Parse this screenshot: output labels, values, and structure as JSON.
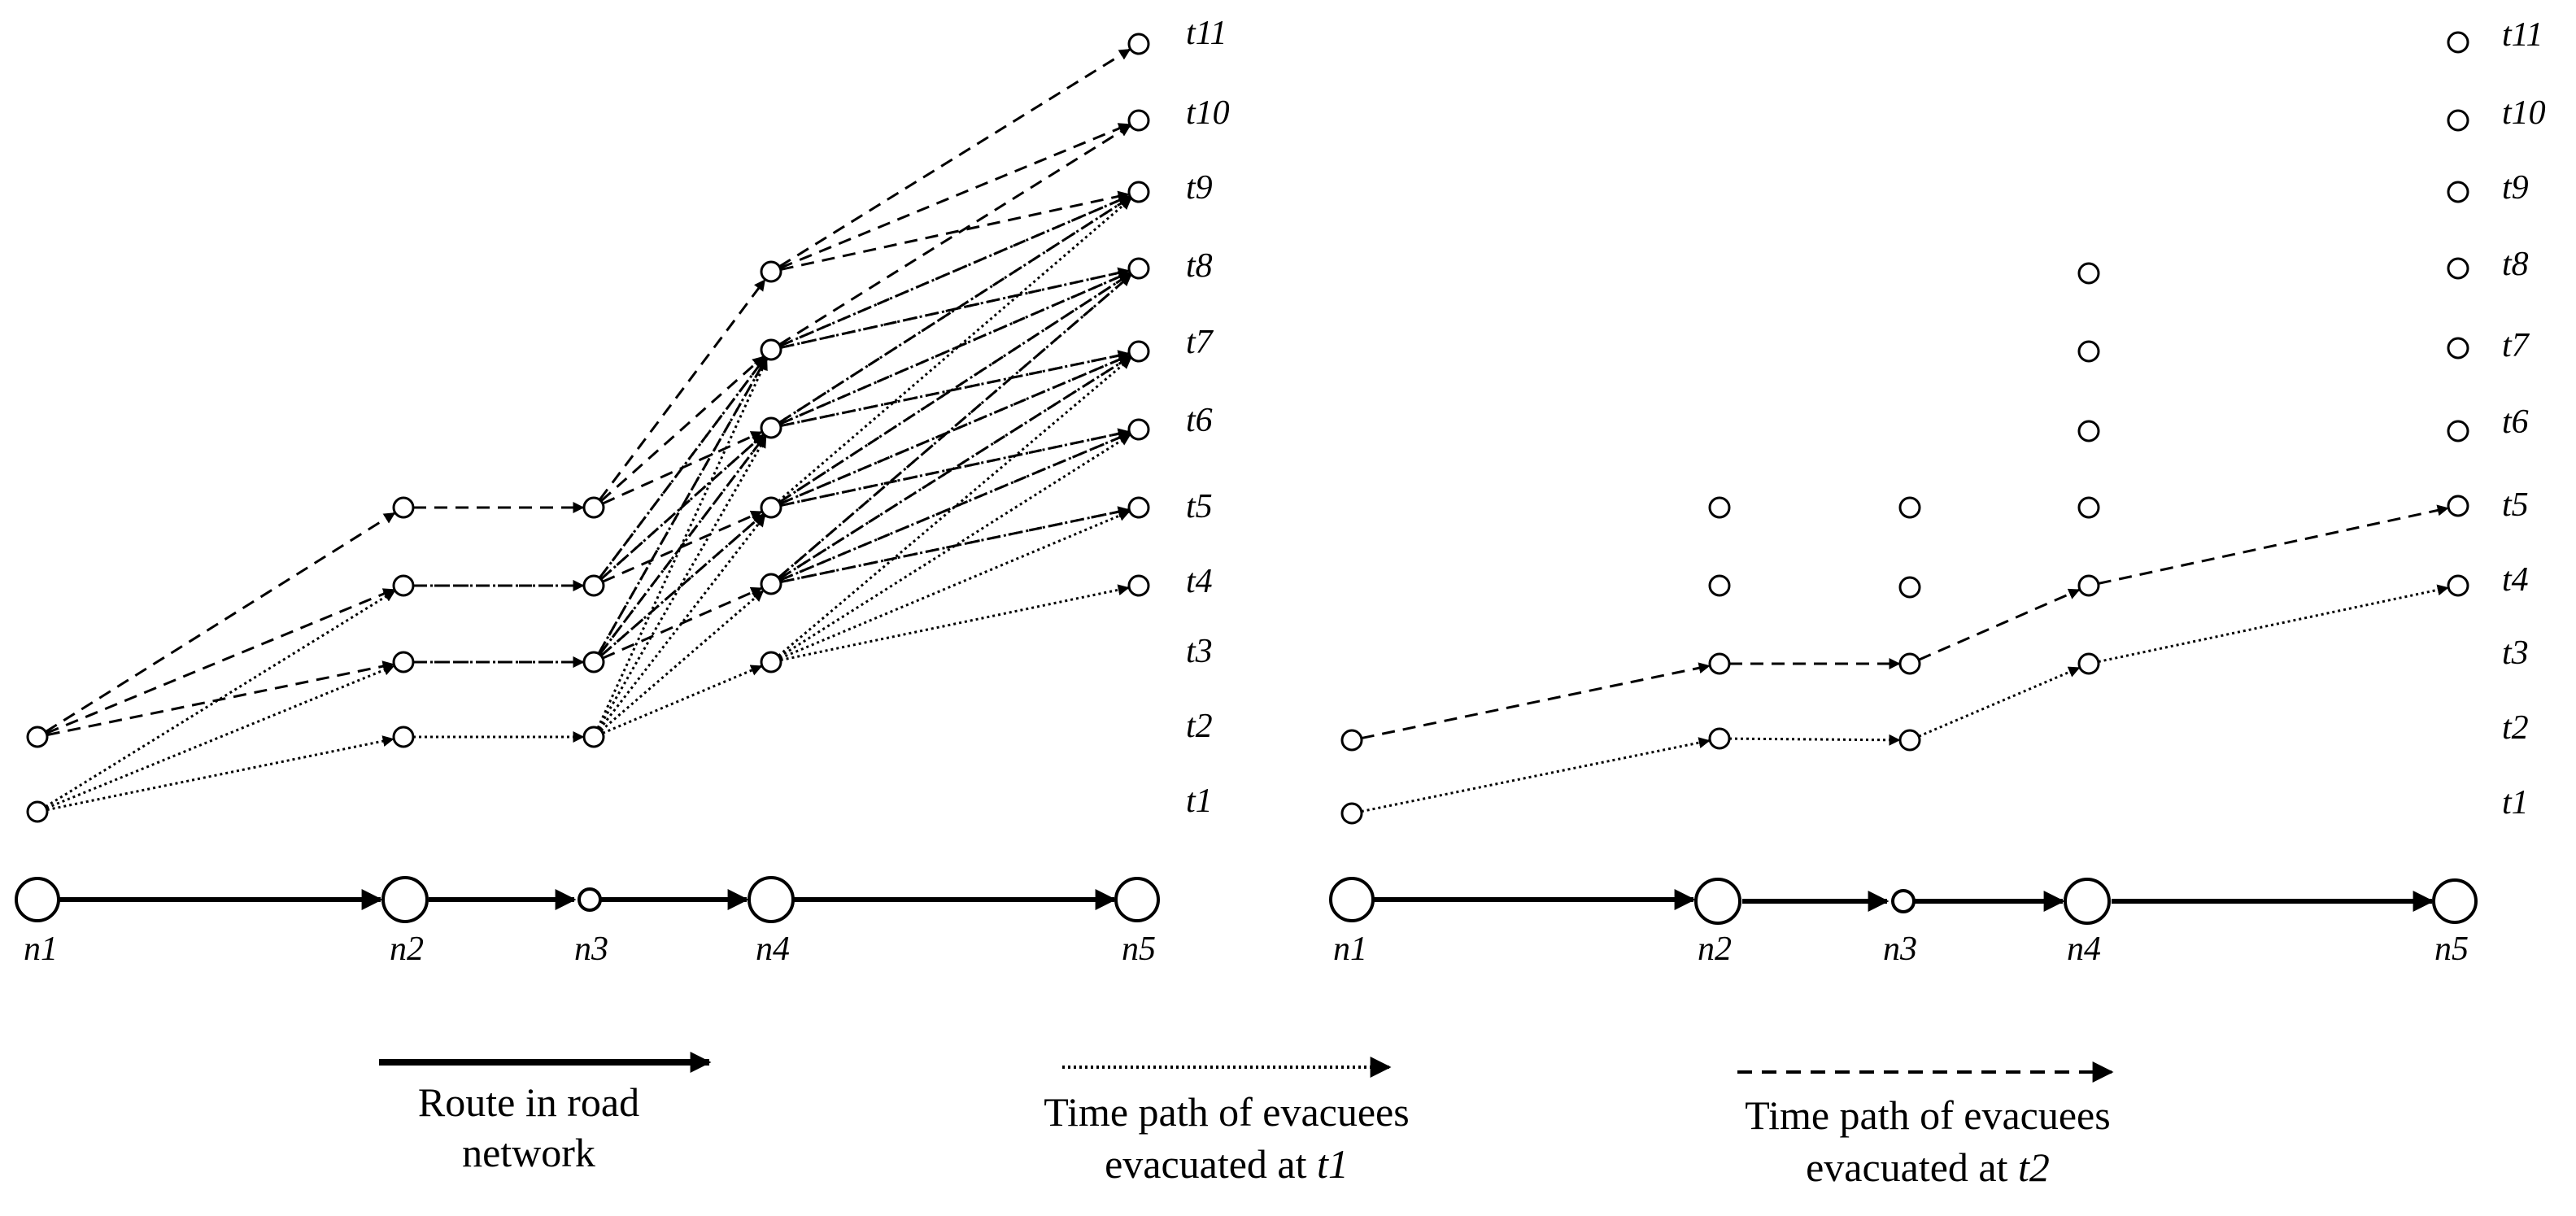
{
  "diagram": {
    "left_panel": {
      "time_labels": [
        "t1",
        "t2",
        "t3",
        "t4",
        "t5",
        "t6",
        "t7",
        "t8",
        "t9",
        "t10",
        "t11"
      ],
      "node_labels": [
        "n1",
        "n2",
        "n3",
        "n4",
        "n5"
      ]
    },
    "right_panel": {
      "time_labels": [
        "t1",
        "t2",
        "t3",
        "t4",
        "t5",
        "t6",
        "t7",
        "t8",
        "t9",
        "t10",
        "t11"
      ],
      "node_labels": [
        "n1",
        "n2",
        "n3",
        "n4",
        "n5"
      ]
    },
    "legend": {
      "route_line1": "Route in road",
      "route_line2": "network",
      "t1_line1": "Time path of evacuees",
      "t1_line2_prefix": "evacuated at ",
      "t1_line2_time": "t1",
      "t2_line1": "Time path of evacuees",
      "t2_line2_prefix": "evacuated at ",
      "t2_line2_time": "t2"
    },
    "colors": {
      "ink": "#000000",
      "background": "#ffffff"
    }
  }
}
